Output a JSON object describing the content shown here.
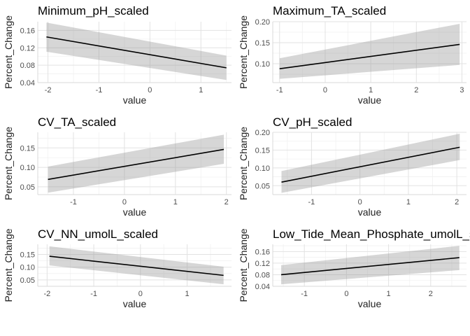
{
  "chart_data": [
    {
      "type": "line",
      "title": "Minimum_pH_scaled",
      "xlabel": "value",
      "ylabel": "Percent_Change",
      "xlim": [
        -2.2,
        1.6
      ],
      "ylim": [
        0.04,
        0.18
      ],
      "xticks": [
        -2,
        -1,
        0,
        1
      ],
      "yticks": [
        0.04,
        0.08,
        0.12,
        0.16
      ],
      "ytick_labels": [
        "0.04",
        "0.08",
        "0.12",
        "0.16"
      ],
      "line": {
        "x": [
          -2.03,
          1.5
        ],
        "y": [
          0.145,
          0.074
        ]
      },
      "band": {
        "x": [
          -2.03,
          1.5
        ],
        "lower": [
          0.111,
          0.046
        ],
        "upper": [
          0.178,
          0.102
        ]
      },
      "grid": true
    },
    {
      "type": "line",
      "title": "Maximum_TA_scaled",
      "xlabel": "value",
      "ylabel": "Percent_Change",
      "xlim": [
        -1.15,
        3.1
      ],
      "ylim": [
        0.055,
        0.2
      ],
      "xticks": [
        -1,
        0,
        1,
        2,
        3
      ],
      "yticks": [
        0.1,
        0.15,
        0.2
      ],
      "ytick_labels": [
        "0.10",
        "0.15",
        "0.20"
      ],
      "line": {
        "x": [
          -1.0,
          2.95
        ],
        "y": [
          0.088,
          0.146
        ]
      },
      "band": {
        "x": [
          -1.0,
          2.95
        ],
        "lower": [
          0.064,
          0.097
        ],
        "upper": [
          0.113,
          0.195
        ]
      },
      "grid": true
    },
    {
      "type": "line",
      "title": "CV_TA_scaled",
      "xlabel": "value",
      "ylabel": "Percent_Change",
      "xlim": [
        -1.7,
        2.1
      ],
      "ylim": [
        0.03,
        0.19
      ],
      "xticks": [
        -1,
        0,
        1,
        2
      ],
      "yticks": [
        0.05,
        0.1,
        0.15
      ],
      "ytick_labels": [
        "0.05",
        "0.10",
        "0.15"
      ],
      "line": {
        "x": [
          -1.5,
          1.95
        ],
        "y": [
          0.069,
          0.146
        ]
      },
      "band": {
        "x": [
          -1.5,
          1.95
        ],
        "lower": [
          0.035,
          0.109
        ],
        "upper": [
          0.102,
          0.184
        ]
      },
      "grid": true
    },
    {
      "type": "line",
      "title": "CV_pH_scaled",
      "xlabel": "value",
      "ylabel": "Percent_Change",
      "xlim": [
        -1.8,
        2.2
      ],
      "ylim": [
        0.025,
        0.2
      ],
      "xticks": [
        -1,
        0,
        1,
        2
      ],
      "yticks": [
        0.05,
        0.1,
        0.15,
        0.2
      ],
      "ytick_labels": [
        "0.05",
        "0.10",
        "0.15",
        "0.20"
      ],
      "line": {
        "x": [
          -1.62,
          2.06
        ],
        "y": [
          0.06,
          0.158
        ]
      },
      "band": {
        "x": [
          -1.62,
          2.06
        ],
        "lower": [
          0.03,
          0.122
        ],
        "upper": [
          0.091,
          0.196
        ]
      },
      "grid": true
    },
    {
      "type": "line",
      "title": "CV_NN_umolL_scaled",
      "xlabel": "value",
      "ylabel": "Percent_Change",
      "xlim": [
        -2.2,
        1.95
      ],
      "ylim": [
        0.025,
        0.19
      ],
      "xticks": [
        -2,
        -1,
        0,
        1
      ],
      "yticks": [
        0.05,
        0.1,
        0.15
      ],
      "ytick_labels": [
        "0.05",
        "0.10",
        "0.15"
      ],
      "line": {
        "x": [
          -1.95,
          1.78
        ],
        "y": [
          0.143,
          0.068
        ]
      },
      "band": {
        "x": [
          -1.95,
          1.78
        ],
        "lower": [
          0.107,
          0.033
        ],
        "upper": [
          0.182,
          0.102
        ]
      },
      "grid": true
    },
    {
      "type": "line",
      "title": "Low_Tide_Mean_Phosphate_umolL_scaled",
      "xlabel": "value",
      "ylabel": "Percent_Change",
      "xlim": [
        -1.75,
        2.85
      ],
      "ylim": [
        0.04,
        0.185
      ],
      "xticks": [
        -1,
        0,
        1,
        2
      ],
      "yticks": [
        0.04,
        0.08,
        0.12,
        0.16
      ],
      "ytick_labels": [
        "0.04",
        "0.08",
        "0.12",
        "0.16"
      ],
      "line": {
        "x": [
          -1.55,
          2.68
        ],
        "y": [
          0.08,
          0.139
        ]
      },
      "band": {
        "x": [
          -1.55,
          2.68
        ],
        "lower": [
          0.047,
          0.096
        ],
        "upper": [
          0.113,
          0.18
        ]
      },
      "grid": true
    }
  ]
}
